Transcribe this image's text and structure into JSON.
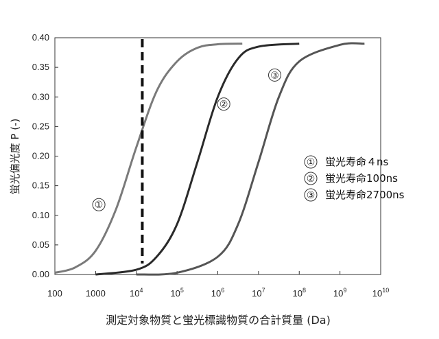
{
  "chart_data": {
    "type": "line",
    "title": "",
    "xlabel": "測定対象物質と蛍光標識物質の合計質量 (Da)",
    "ylabel": "蛍光偏光度 P (-)",
    "x_scale": "log",
    "xlim": [
      100,
      10000000000
    ],
    "ylim": [
      0,
      0.4
    ],
    "x_ticks": [
      {
        "value": 100,
        "base": "100",
        "exp": ""
      },
      {
        "value": 1000,
        "base": "1000",
        "exp": ""
      },
      {
        "value": 10000,
        "base": "10",
        "exp": "4"
      },
      {
        "value": 100000,
        "base": "10",
        "exp": "5"
      },
      {
        "value": 1000000,
        "base": "10",
        "exp": "6"
      },
      {
        "value": 10000000,
        "base": "10",
        "exp": "7"
      },
      {
        "value": 100000000,
        "base": "10",
        "exp": "8"
      },
      {
        "value": 1000000000,
        "base": "10",
        "exp": "9"
      },
      {
        "value": 10000000000,
        "base": "10",
        "exp": "10"
      }
    ],
    "y_ticks": [
      "0.00",
      "0.05",
      "0.10",
      "0.15",
      "0.20",
      "0.25",
      "0.30",
      "0.35",
      "0.40"
    ],
    "grid": false,
    "legend_position": "right",
    "series": [
      {
        "name": "蛍光寿命４ns",
        "marker": "①",
        "color": "#7a7a7a",
        "x": [
          100,
          316,
          1000,
          3162,
          10000,
          31623,
          100000,
          316228,
          1000000,
          4000000
        ],
        "y": [
          0.003,
          0.012,
          0.04,
          0.11,
          0.215,
          0.31,
          0.36,
          0.383,
          0.389,
          0.39
        ]
      },
      {
        "name": "蛍光寿命100ns",
        "marker": "②",
        "color": "#2a2a2a",
        "x": [
          1000,
          10000,
          31623,
          100000,
          316228,
          1000000,
          3162278,
          10000000,
          100000000
        ],
        "y": [
          0.0,
          0.008,
          0.03,
          0.085,
          0.19,
          0.3,
          0.365,
          0.385,
          0.39
        ]
      },
      {
        "name": "蛍光寿命2700ns",
        "marker": "③",
        "color": "#555555",
        "x": [
          10000,
          100000,
          1000000,
          3162278,
          10000000,
          31622777,
          100000000,
          1000000000,
          4000000000
        ],
        "y": [
          0.0,
          0.003,
          0.03,
          0.085,
          0.19,
          0.3,
          0.36,
          0.388,
          0.39
        ]
      }
    ],
    "reference_line": {
      "x": 14000,
      "style": "dashed"
    },
    "curve_markers": [
      {
        "label": "①",
        "x": 1200,
        "y": 0.118
      },
      {
        "label": "②",
        "x": 1400000,
        "y": 0.288
      },
      {
        "label": "③",
        "x": 25000000,
        "y": 0.337
      }
    ]
  }
}
